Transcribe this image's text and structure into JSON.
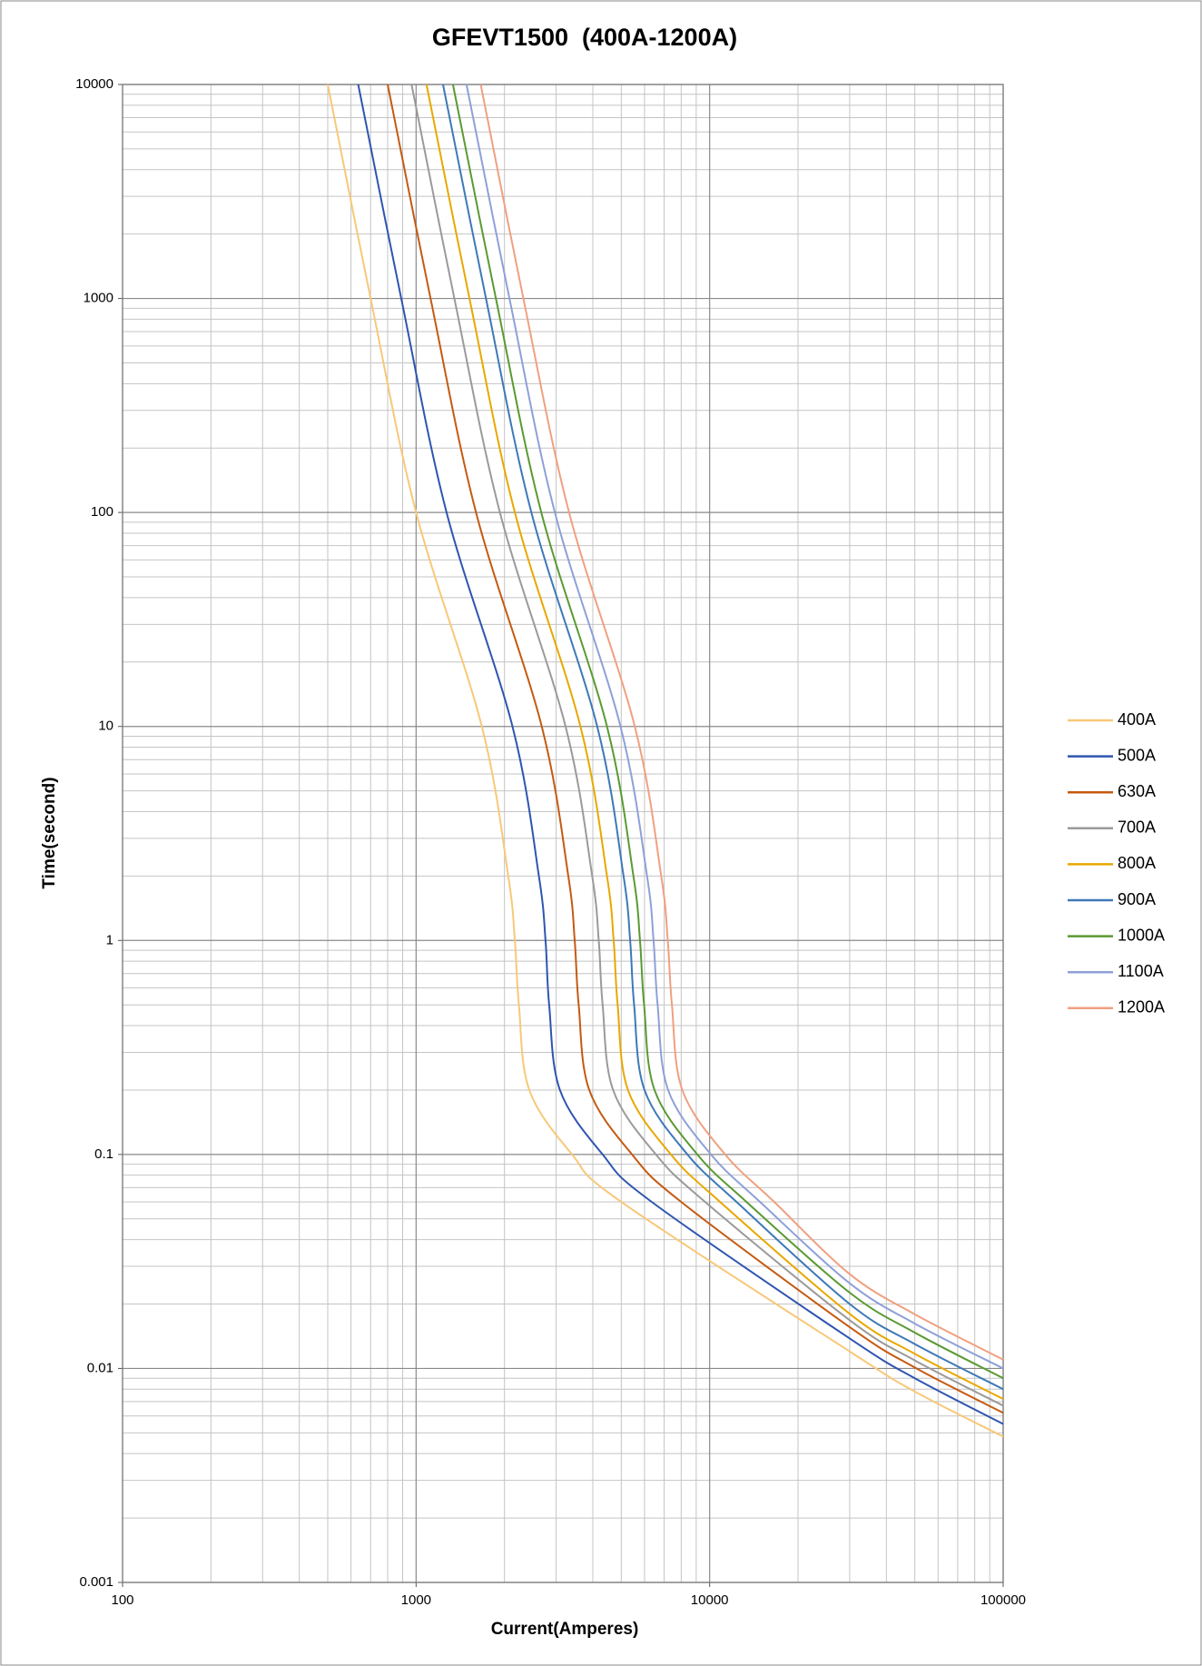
{
  "chart_data": {
    "type": "line",
    "title": "GFEVT1500  (400A-1200A)",
    "x_label": "Current(Amperes)",
    "y_label": "Time(second)",
    "xscale": "log",
    "yscale": "log",
    "grid": true,
    "minor_grid": true,
    "legend": "right",
    "xlim": [
      100,
      100000
    ],
    "xticks": [
      100,
      1000,
      10000,
      100000
    ],
    "ylim": [
      0.001,
      10000
    ],
    "yticks": [
      0.001,
      0.01,
      0.1,
      1,
      10,
      100,
      1000,
      10000
    ],
    "series": [
      {
        "name": "400A",
        "color": "#f8c878",
        "x": [
          500,
          700,
          1000,
          1675,
          2060,
          2170,
          2240,
          2430,
          3400,
          5000,
          30000,
          50000,
          100000
        ],
        "values": [
          10000,
          1000,
          100,
          10,
          2,
          1,
          0.5,
          0.2,
          0.1,
          0.06,
          0.012,
          0.0078,
          0.0048
        ]
      },
      {
        "name": "500A",
        "color": "#2f55b0",
        "x": [
          635,
          890,
          1270,
          2130,
          2620,
          2760,
          2840,
          3090,
          4320,
          6350,
          30000,
          50000,
          100000
        ],
        "values": [
          10000,
          1000,
          100,
          10,
          2,
          1,
          0.5,
          0.2,
          0.1,
          0.06,
          0.0138,
          0.009,
          0.0055
        ]
      },
      {
        "name": "630A",
        "color": "#c55a11",
        "x": [
          800,
          1120,
          1600,
          2680,
          3300,
          3470,
          3580,
          3890,
          5440,
          8000,
          30000,
          50000,
          100000
        ],
        "values": [
          10000,
          1000,
          100,
          10,
          2,
          1,
          0.5,
          0.2,
          0.1,
          0.06,
          0.0156,
          0.0101,
          0.0062
        ]
      },
      {
        "name": "700A",
        "color": "#9a9a9a",
        "x": [
          965,
          1350,
          1930,
          3230,
          3980,
          4190,
          4320,
          4690,
          6560,
          9650,
          30000,
          50000,
          100000
        ],
        "values": [
          10000,
          1000,
          100,
          10,
          2,
          1,
          0.5,
          0.2,
          0.1,
          0.06,
          0.0168,
          0.0109,
          0.0067
        ]
      },
      {
        "name": "800A",
        "color": "#e8a800",
        "x": [
          1085,
          1520,
          2170,
          3630,
          4470,
          4710,
          4860,
          5270,
          7380,
          10850,
          30000,
          50000,
          100000
        ],
        "values": [
          10000,
          1000,
          100,
          10,
          2,
          1,
          0.5,
          0.2,
          0.1,
          0.06,
          0.018,
          0.0117,
          0.0072
        ]
      },
      {
        "name": "900A",
        "color": "#3d79b8",
        "x": [
          1235,
          1730,
          2470,
          4140,
          5090,
          5360,
          5530,
          6000,
          8400,
          12350,
          30000,
          50000,
          100000
        ],
        "values": [
          10000,
          1000,
          100,
          10,
          2,
          1,
          0.5,
          0.2,
          0.1,
          0.06,
          0.02,
          0.013,
          0.008
        ]
      },
      {
        "name": "1000A",
        "color": "#5a9a32",
        "x": [
          1335,
          1870,
          2670,
          4470,
          5500,
          5790,
          5980,
          6490,
          9080,
          13350,
          30000,
          50000,
          100000
        ],
        "values": [
          10000,
          1000,
          100,
          10,
          2,
          1,
          0.5,
          0.2,
          0.1,
          0.06,
          0.0226,
          0.0147,
          0.009
        ]
      },
      {
        "name": "1100A",
        "color": "#8ea0d8",
        "x": [
          1485,
          2080,
          2970,
          4970,
          6120,
          6440,
          6650,
          7220,
          10100,
          14850,
          30000,
          50000,
          100000
        ],
        "values": [
          10000,
          1000,
          100,
          10,
          2,
          1,
          0.5,
          0.2,
          0.1,
          0.06,
          0.025,
          0.0162,
          0.01
        ]
      },
      {
        "name": "1200A",
        "color": "#f0a080",
        "x": [
          1660,
          2320,
          3320,
          5560,
          6840,
          7200,
          7440,
          8070,
          11290,
          16600,
          30000,
          50000,
          100000
        ],
        "values": [
          10000,
          1000,
          100,
          10,
          2,
          1,
          0.5,
          0.2,
          0.1,
          0.06,
          0.0276,
          0.0179,
          0.011
        ]
      }
    ]
  }
}
